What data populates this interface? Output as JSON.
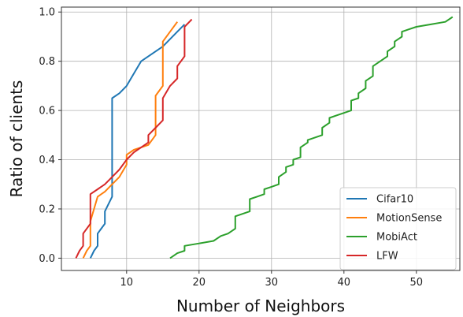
{
  "chart_data": {
    "type": "line",
    "xlabel": "Number of Neighbors",
    "ylabel": "Ratio of clients",
    "xlim": [
      1,
      56
    ],
    "ylim": [
      -0.05,
      1.02
    ],
    "xticks": [
      10,
      20,
      30,
      40,
      50
    ],
    "yticks": [
      0.0,
      0.2,
      0.4,
      0.6,
      0.8,
      1.0
    ],
    "xtick_labels": [
      "10",
      "20",
      "30",
      "40",
      "50"
    ],
    "ytick_labels": [
      "0.0",
      "0.2",
      "0.4",
      "0.6",
      "0.8",
      "1.0"
    ],
    "grid": true,
    "legend_position": "lower-right",
    "series": [
      {
        "name": "Cifar10",
        "color": "#1f77b4",
        "points": [
          [
            5,
            0.0
          ],
          [
            5.5,
            0.03
          ],
          [
            6,
            0.05
          ],
          [
            6,
            0.1
          ],
          [
            6.5,
            0.12
          ],
          [
            7,
            0.14
          ],
          [
            7,
            0.19
          ],
          [
            7.5,
            0.22
          ],
          [
            8,
            0.25
          ],
          [
            8,
            0.65
          ],
          [
            9,
            0.67
          ],
          [
            10,
            0.7
          ],
          [
            11,
            0.75
          ],
          [
            12,
            0.8
          ],
          [
            13,
            0.82
          ],
          [
            14,
            0.84
          ],
          [
            15,
            0.86
          ],
          [
            16,
            0.89
          ],
          [
            17,
            0.92
          ],
          [
            18,
            0.95
          ]
        ]
      },
      {
        "name": "MotionSense",
        "color": "#ff7f0e",
        "points": [
          [
            4,
            0.0
          ],
          [
            4.5,
            0.03
          ],
          [
            5,
            0.05
          ],
          [
            5,
            0.15
          ],
          [
            6,
            0.25
          ],
          [
            7,
            0.27
          ],
          [
            8,
            0.3
          ],
          [
            9,
            0.33
          ],
          [
            10,
            0.38
          ],
          [
            10,
            0.42
          ],
          [
            11,
            0.44
          ],
          [
            12,
            0.45
          ],
          [
            13,
            0.46
          ],
          [
            14,
            0.5
          ],
          [
            14,
            0.66
          ],
          [
            14.5,
            0.68
          ],
          [
            15,
            0.7
          ],
          [
            15,
            0.88
          ],
          [
            16,
            0.92
          ],
          [
            17,
            0.96
          ]
        ]
      },
      {
        "name": "MobiAct",
        "color": "#2ca02c",
        "points": [
          [
            16,
            0.0
          ],
          [
            17,
            0.02
          ],
          [
            18,
            0.03
          ],
          [
            18,
            0.05
          ],
          [
            20,
            0.06
          ],
          [
            22,
            0.07
          ],
          [
            23,
            0.09
          ],
          [
            24,
            0.1
          ],
          [
            25,
            0.12
          ],
          [
            25,
            0.17
          ],
          [
            26,
            0.18
          ],
          [
            27,
            0.19
          ],
          [
            27,
            0.24
          ],
          [
            28,
            0.25
          ],
          [
            29,
            0.26
          ],
          [
            29,
            0.28
          ],
          [
            30,
            0.29
          ],
          [
            31,
            0.3
          ],
          [
            31,
            0.33
          ],
          [
            32,
            0.35
          ],
          [
            32,
            0.37
          ],
          [
            33,
            0.38
          ],
          [
            33,
            0.4
          ],
          [
            34,
            0.41
          ],
          [
            34,
            0.45
          ],
          [
            35,
            0.47
          ],
          [
            35,
            0.48
          ],
          [
            36,
            0.49
          ],
          [
            37,
            0.5
          ],
          [
            37,
            0.53
          ],
          [
            38,
            0.55
          ],
          [
            38,
            0.57
          ],
          [
            39,
            0.58
          ],
          [
            40,
            0.59
          ],
          [
            41,
            0.6
          ],
          [
            41,
            0.64
          ],
          [
            42,
            0.65
          ],
          [
            42,
            0.67
          ],
          [
            43,
            0.69
          ],
          [
            43,
            0.72
          ],
          [
            44,
            0.74
          ],
          [
            44,
            0.78
          ],
          [
            45,
            0.8
          ],
          [
            46,
            0.82
          ],
          [
            46,
            0.84
          ],
          [
            47,
            0.86
          ],
          [
            47,
            0.88
          ],
          [
            48,
            0.9
          ],
          [
            48,
            0.92
          ],
          [
            49,
            0.93
          ],
          [
            50,
            0.94
          ],
          [
            52,
            0.95
          ],
          [
            54,
            0.96
          ],
          [
            55,
            0.98
          ]
        ]
      },
      {
        "name": "LFW",
        "color": "#d62728",
        "points": [
          [
            3,
            0.0
          ],
          [
            3.5,
            0.03
          ],
          [
            4,
            0.05
          ],
          [
            4,
            0.1
          ],
          [
            5,
            0.14
          ],
          [
            5,
            0.26
          ],
          [
            6,
            0.28
          ],
          [
            7,
            0.3
          ],
          [
            8,
            0.33
          ],
          [
            9,
            0.36
          ],
          [
            10,
            0.4
          ],
          [
            11,
            0.43
          ],
          [
            12,
            0.45
          ],
          [
            13,
            0.47
          ],
          [
            13,
            0.5
          ],
          [
            14,
            0.53
          ],
          [
            15,
            0.56
          ],
          [
            15,
            0.65
          ],
          [
            16,
            0.7
          ],
          [
            17,
            0.73
          ],
          [
            17,
            0.78
          ],
          [
            17.5,
            0.8
          ],
          [
            18,
            0.82
          ],
          [
            18,
            0.94
          ],
          [
            19,
            0.97
          ]
        ]
      }
    ]
  }
}
